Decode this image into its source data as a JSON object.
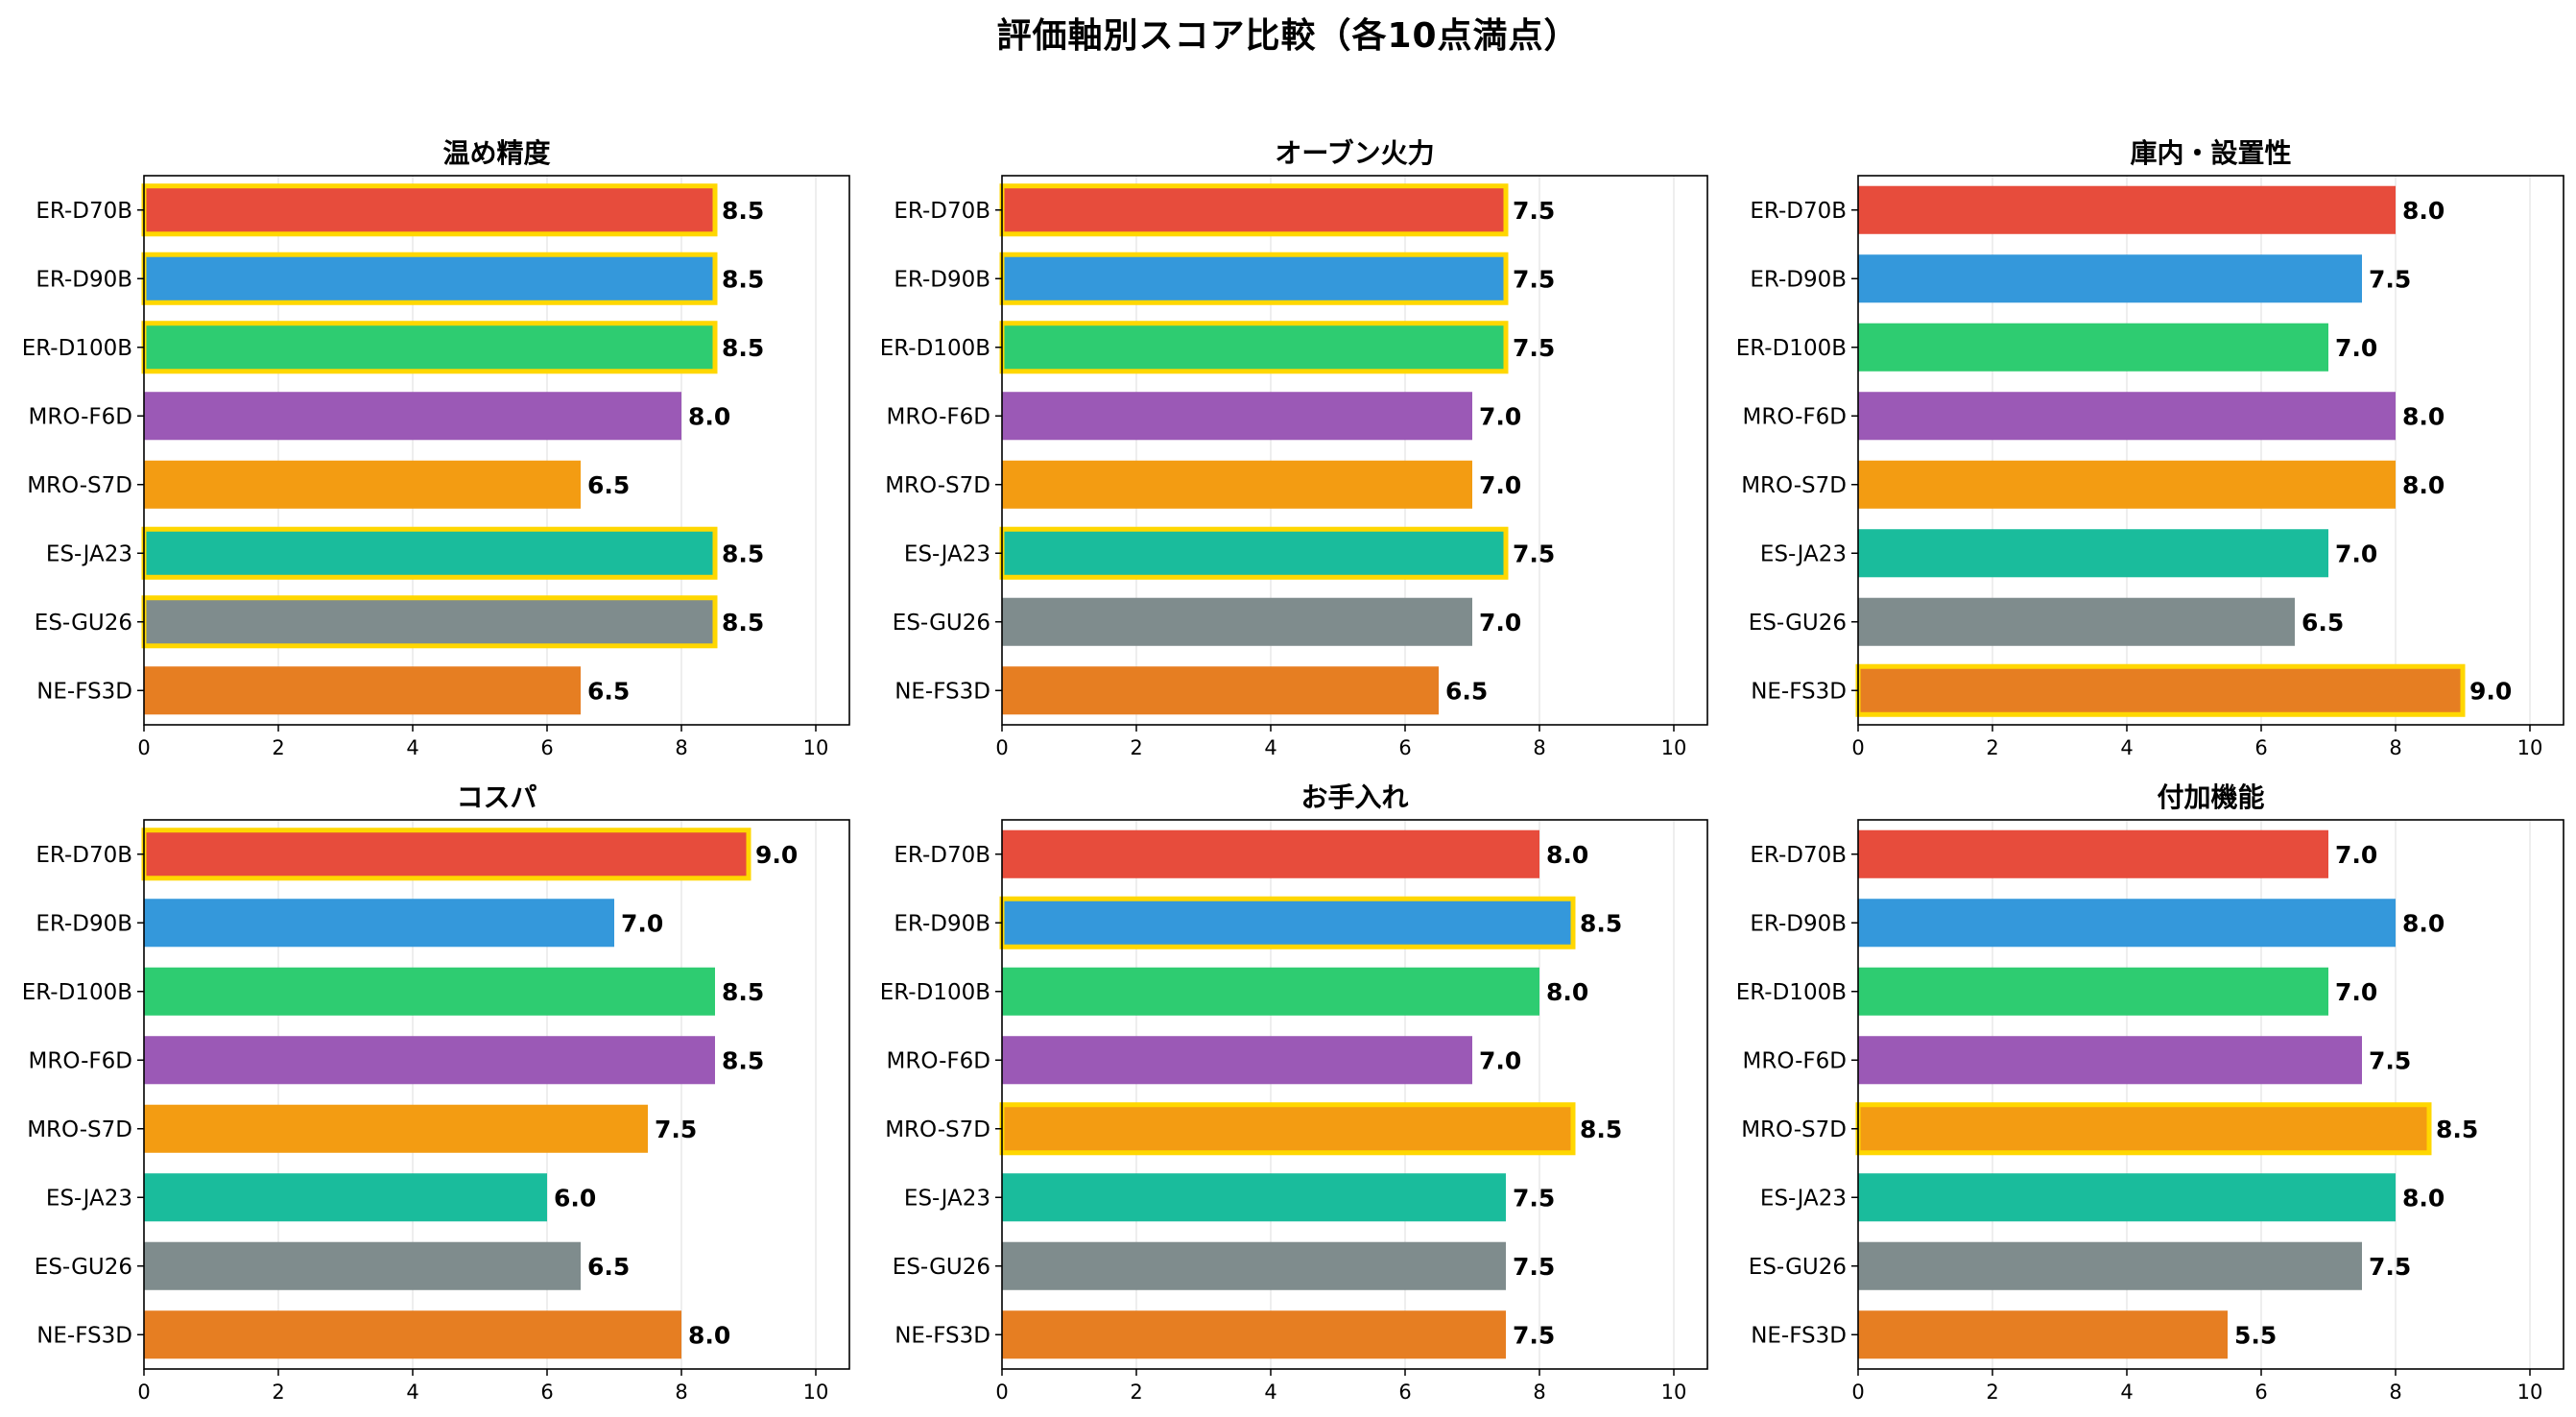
{
  "title": "評価軸別スコア比較（各10点満点）",
  "chart_data": {
    "type": "bar",
    "orientation": "horizontal",
    "categories": [
      "ER-D70B",
      "ER-D90B",
      "ER-D100B",
      "MRO-F6D",
      "MRO-S7D",
      "ES-JA23",
      "ES-GU26",
      "NE-FS3D"
    ],
    "colors": [
      "#e74c3c",
      "#3498db",
      "#2ecc71",
      "#9b59b6",
      "#f39c12",
      "#1abc9c",
      "#7f8c8d",
      "#e67e22"
    ],
    "highlight_color": "#ffd700",
    "xlim": [
      0,
      10.5
    ],
    "xticks": [
      0,
      2,
      4,
      6,
      8,
      10
    ],
    "grid": "vertical",
    "panels": [
      {
        "title": "温め精度",
        "values": [
          8.5,
          8.5,
          8.5,
          8.0,
          6.5,
          8.5,
          8.5,
          6.5
        ],
        "value_labels": [
          "8.5",
          "8.5",
          "8.5",
          "8.0",
          "6.5",
          "8.5",
          "8.5",
          "6.5"
        ]
      },
      {
        "title": "オーブン火力",
        "values": [
          7.5,
          7.5,
          7.5,
          7.0,
          7.0,
          7.5,
          7.0,
          6.5
        ],
        "value_labels": [
          "7.5",
          "7.5",
          "7.5",
          "7.0",
          "7.0",
          "7.5",
          "7.0",
          "6.5"
        ]
      },
      {
        "title": "庫内・設置性",
        "values": [
          8.0,
          7.5,
          7.0,
          8.0,
          8.0,
          7.0,
          6.5,
          9.0
        ],
        "value_labels": [
          "8.0",
          "7.5",
          "7.0",
          "8.0",
          "8.0",
          "7.0",
          "6.5",
          "9.0"
        ]
      },
      {
        "title": "コスパ",
        "values": [
          9.0,
          7.0,
          8.5,
          8.5,
          7.5,
          6.0,
          6.5,
          8.0
        ],
        "value_labels": [
          "9.0",
          "7.0",
          "8.5",
          "8.5",
          "7.5",
          "6.0",
          "6.5",
          "8.0"
        ]
      },
      {
        "title": "お手入れ",
        "values": [
          8.0,
          8.5,
          8.0,
          7.0,
          8.5,
          7.5,
          7.5,
          7.5
        ],
        "value_labels": [
          "8.0",
          "8.5",
          "8.0",
          "7.0",
          "8.5",
          "7.5",
          "7.5",
          "7.5"
        ]
      },
      {
        "title": "付加機能",
        "values": [
          7.0,
          8.0,
          7.0,
          7.5,
          8.5,
          8.0,
          7.5,
          5.5
        ],
        "value_labels": [
          "7.0",
          "8.0",
          "7.0",
          "7.5",
          "8.5",
          "8.0",
          "7.5",
          "5.5"
        ]
      }
    ]
  }
}
